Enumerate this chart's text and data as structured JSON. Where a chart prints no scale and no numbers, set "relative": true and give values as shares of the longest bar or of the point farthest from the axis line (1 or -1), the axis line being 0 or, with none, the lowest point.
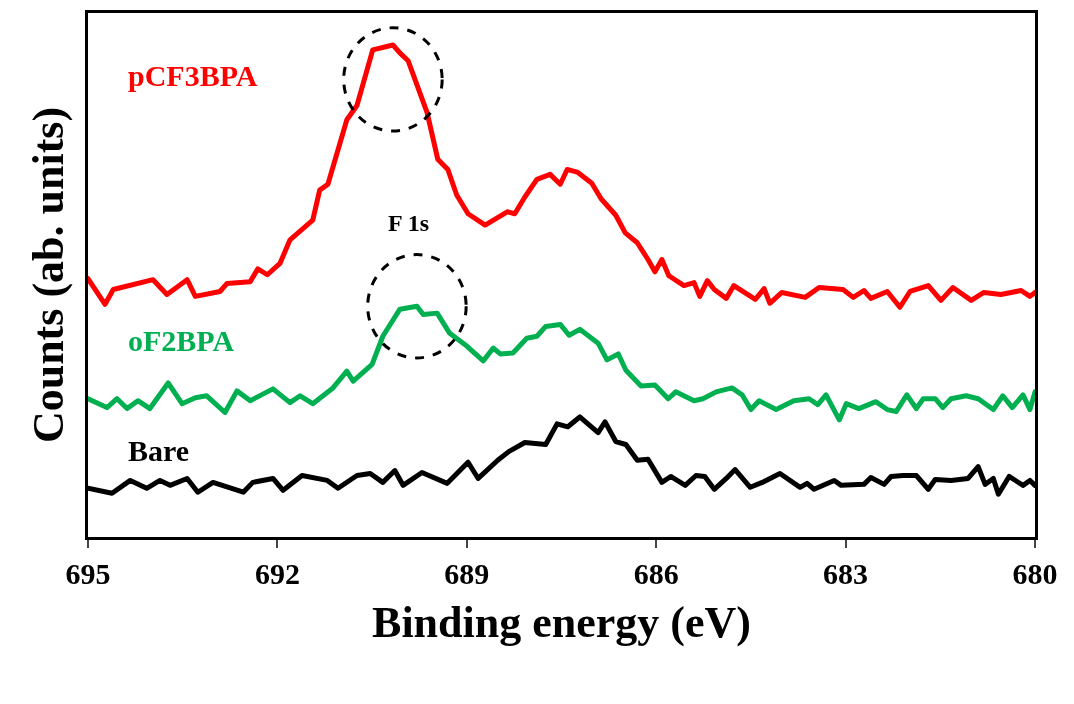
{
  "chart_data": {
    "type": "line",
    "relative": true,
    "xlabel": "Binding energy (eV)",
    "ylabel": "Counts (ab. units)",
    "xlim": [
      695,
      680
    ],
    "xticks": [
      695,
      692,
      689,
      686,
      683,
      680
    ],
    "legend": false,
    "marker": "none",
    "line_style": "solid",
    "annotations": [
      "F 1s"
    ],
    "series": [
      {
        "name": "pCF3BPA",
        "color": "#ff0000",
        "x": [
          695.0,
          694.73,
          694.6,
          693.97,
          693.75,
          693.43,
          693.3,
          692.91,
          692.8,
          692.43,
          692.31,
          692.16,
          691.96,
          691.8,
          691.44,
          691.33,
          691.2,
          690.9,
          690.74,
          690.49,
          690.17,
          690.06,
          689.93,
          689.63,
          689.46,
          689.3,
          689.16,
          688.98,
          688.71,
          688.36,
          688.24,
          688.08,
          687.89,
          687.68,
          687.52,
          687.41,
          687.24,
          687.02,
          686.87,
          686.64,
          686.49,
          686.3,
          686.13,
          686.02,
          685.91,
          685.8,
          685.56,
          685.4,
          685.31,
          685.19,
          685.08,
          684.89,
          684.77,
          684.43,
          684.29,
          684.2,
          684.01,
          683.64,
          683.42,
          683.04,
          682.88,
          682.71,
          682.6,
          682.34,
          682.14,
          681.98,
          681.69,
          681.49,
          681.3,
          681.01,
          680.81,
          680.54,
          680.22,
          680.08,
          680.0
        ],
        "values": [
          0.525,
          0.473,
          0.503,
          0.523,
          0.493,
          0.523,
          0.489,
          0.499,
          0.515,
          0.519,
          0.545,
          0.533,
          0.556,
          0.604,
          0.644,
          0.705,
          0.717,
          0.848,
          0.877,
          0.99,
          1.0,
          0.984,
          0.968,
          0.863,
          0.768,
          0.747,
          0.695,
          0.657,
          0.634,
          0.661,
          0.657,
          0.691,
          0.727,
          0.737,
          0.717,
          0.747,
          0.741,
          0.719,
          0.687,
          0.654,
          0.618,
          0.598,
          0.564,
          0.539,
          0.564,
          0.531,
          0.511,
          0.517,
          0.489,
          0.521,
          0.503,
          0.485,
          0.511,
          0.483,
          0.505,
          0.475,
          0.497,
          0.487,
          0.507,
          0.503,
          0.487,
          0.501,
          0.485,
          0.499,
          0.467,
          0.499,
          0.511,
          0.481,
          0.507,
          0.481,
          0.497,
          0.493,
          0.501,
          0.489,
          0.497
        ]
      },
      {
        "name": "oF2BPA",
        "color": "#00b050",
        "x": [
          695.0,
          694.7,
          694.54,
          694.38,
          694.21,
          694.02,
          693.73,
          693.51,
          693.3,
          693.12,
          692.83,
          692.64,
          692.43,
          692.07,
          691.8,
          691.64,
          691.44,
          691.12,
          690.9,
          690.8,
          690.5,
          690.33,
          690.06,
          689.79,
          689.69,
          689.47,
          689.27,
          689.0,
          688.74,
          688.58,
          688.47,
          688.27,
          688.05,
          687.89,
          687.75,
          687.52,
          687.38,
          687.21,
          686.92,
          686.78,
          686.6,
          686.48,
          686.24,
          686.02,
          685.81,
          685.69,
          685.4,
          685.26,
          685.05,
          684.8,
          684.64,
          684.5,
          684.37,
          684.1,
          683.82,
          683.58,
          683.44,
          683.31,
          683.1,
          682.99,
          682.79,
          682.52,
          682.34,
          682.2,
          682.03,
          681.88,
          681.77,
          681.58,
          681.46,
          681.33,
          681.09,
          680.9,
          680.66,
          680.51,
          680.36,
          680.19,
          680.08,
          680.0
        ],
        "values": [
          0.281,
          0.263,
          0.281,
          0.261,
          0.277,
          0.261,
          0.313,
          0.271,
          0.283,
          0.287,
          0.253,
          0.297,
          0.277,
          0.301,
          0.273,
          0.287,
          0.271,
          0.303,
          0.337,
          0.317,
          0.351,
          0.408,
          0.463,
          0.469,
          0.452,
          0.455,
          0.414,
          0.388,
          0.358,
          0.384,
          0.372,
          0.374,
          0.404,
          0.408,
          0.428,
          0.432,
          0.41,
          0.422,
          0.394,
          0.36,
          0.372,
          0.339,
          0.307,
          0.309,
          0.281,
          0.295,
          0.277,
          0.281,
          0.295,
          0.303,
          0.289,
          0.259,
          0.277,
          0.259,
          0.277,
          0.281,
          0.269,
          0.289,
          0.238,
          0.271,
          0.261,
          0.275,
          0.259,
          0.255,
          0.289,
          0.261,
          0.281,
          0.281,
          0.263,
          0.281,
          0.287,
          0.281,
          0.259,
          0.287,
          0.263,
          0.289,
          0.259,
          0.295
        ]
      },
      {
        "name": "Bare",
        "color": "#000000",
        "x": [
          695.0,
          694.62,
          694.33,
          694.07,
          693.86,
          693.7,
          693.43,
          693.26,
          693.02,
          692.54,
          692.39,
          692.07,
          691.91,
          691.61,
          691.21,
          691.04,
          690.74,
          690.53,
          690.33,
          690.14,
          690.01,
          689.71,
          689.31,
          688.98,
          688.82,
          688.51,
          688.33,
          688.08,
          687.75,
          687.57,
          687.4,
          687.21,
          686.92,
          686.81,
          686.64,
          686.48,
          686.3,
          686.13,
          685.91,
          685.77,
          685.54,
          685.37,
          685.23,
          685.08,
          684.89,
          684.75,
          684.51,
          684.32,
          684.04,
          683.72,
          683.61,
          683.5,
          683.18,
          683.07,
          682.71,
          682.6,
          682.39,
          682.28,
          682.09,
          681.88,
          681.69,
          681.58,
          681.33,
          681.06,
          680.9,
          680.79,
          680.66,
          680.58,
          680.41,
          680.19,
          680.08,
          680.0
        ],
        "values": [
          0.099,
          0.089,
          0.115,
          0.099,
          0.115,
          0.105,
          0.119,
          0.091,
          0.111,
          0.091,
          0.111,
          0.119,
          0.095,
          0.125,
          0.115,
          0.099,
          0.125,
          0.129,
          0.111,
          0.135,
          0.105,
          0.131,
          0.109,
          0.152,
          0.119,
          0.156,
          0.174,
          0.192,
          0.188,
          0.23,
          0.224,
          0.244,
          0.212,
          0.234,
          0.194,
          0.188,
          0.156,
          0.158,
          0.111,
          0.123,
          0.105,
          0.125,
          0.123,
          0.097,
          0.119,
          0.137,
          0.101,
          0.111,
          0.129,
          0.101,
          0.109,
          0.097,
          0.115,
          0.105,
          0.107,
          0.121,
          0.107,
          0.123,
          0.125,
          0.125,
          0.097,
          0.117,
          0.115,
          0.119,
          0.143,
          0.107,
          0.119,
          0.087,
          0.123,
          0.105,
          0.115,
          0.105
        ]
      }
    ]
  }
}
